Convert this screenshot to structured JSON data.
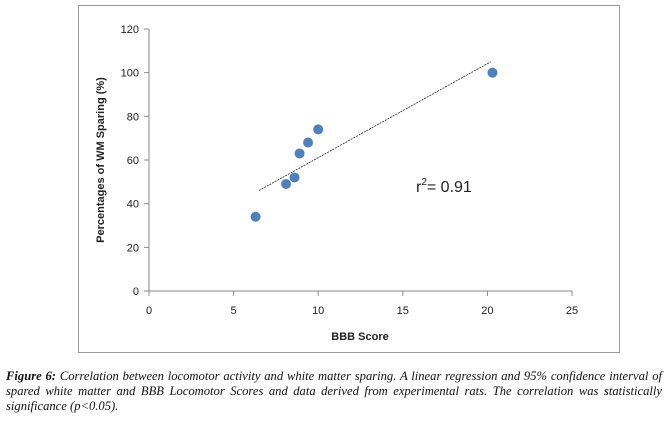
{
  "chart_data": {
    "type": "scatter",
    "x_label": "BBB Score",
    "y_label": "Percentages of WM Sparing (%)",
    "x": [
      6.3,
      8.1,
      8.6,
      8.9,
      9.4,
      10.0,
      20.3
    ],
    "values": [
      34,
      49,
      52,
      63,
      68,
      74,
      100
    ],
    "color": "#4f81bd",
    "xlim": [
      0,
      25
    ],
    "xticks": [
      0,
      5,
      10,
      15,
      20,
      25
    ],
    "ylim": [
      0,
      120
    ],
    "yticks": [
      0,
      20,
      40,
      60,
      80,
      100,
      120
    ],
    "grid": false,
    "trendline": {
      "x": [
        6.5,
        20.2
      ],
      "y": [
        46,
        105
      ]
    },
    "annotation": {
      "base": "r",
      "sup": "2",
      "rest": "= 0.91"
    }
  },
  "caption": {
    "label": "Figure 6:",
    "text": "Correlation between locomotor activity and white matter sparing. A linear regression and 95% confidence interval of spared white matter and BBB Locomotor Scores and data derived from experimental rats. The correlation was statistically significance (p<0.05)."
  }
}
